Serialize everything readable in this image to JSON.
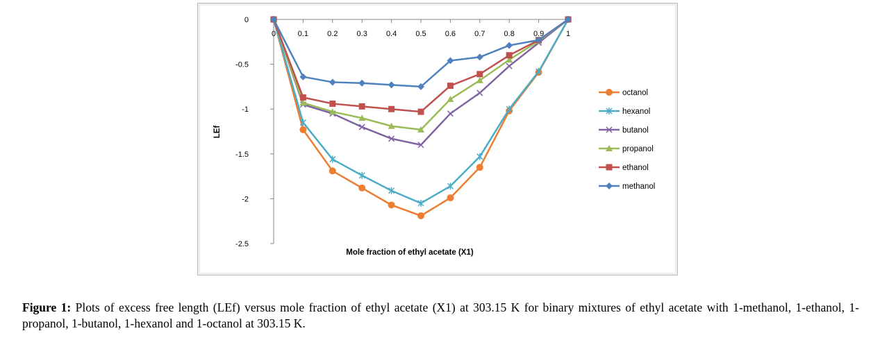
{
  "chart_data": {
    "type": "line",
    "title": "",
    "xlabel": "Mole fraction of ethyl acetate (X1)",
    "ylabel": "LEf",
    "xlim": [
      0,
      1
    ],
    "ylim": [
      -2.5,
      0
    ],
    "x": [
      0,
      0.1,
      0.2,
      0.3,
      0.4,
      0.5,
      0.6,
      0.7,
      0.8,
      0.9,
      1
    ],
    "x_tick_labels": [
      "0",
      "0.1",
      "0.2",
      "0.3",
      "0.4",
      "0.5",
      "0.6",
      "0.7",
      "0.8",
      "0.9",
      "1"
    ],
    "y_ticks": [
      0,
      -0.5,
      -1,
      -1.5,
      -2,
      -2.5
    ],
    "y_tick_labels": [
      "0",
      "-0.5",
      "-1",
      "-1.5",
      "-2",
      "-2.5"
    ],
    "legend_position": "right",
    "series": [
      {
        "name": "octanol",
        "color": "#ED7D31",
        "marker": "circle",
        "values": [
          0,
          -1.23,
          -1.69,
          -1.88,
          -2.07,
          -2.19,
          -1.99,
          -1.65,
          -1.02,
          -0.59,
          0
        ]
      },
      {
        "name": "hexanol",
        "color": "#4BACC6",
        "marker": "star",
        "values": [
          0,
          -1.15,
          -1.56,
          -1.74,
          -1.91,
          -2.05,
          -1.86,
          -1.53,
          -1.0,
          -0.58,
          0
        ]
      },
      {
        "name": "butanol",
        "color": "#8064A2",
        "marker": "x",
        "values": [
          0,
          -0.95,
          -1.05,
          -1.2,
          -1.33,
          -1.4,
          -1.05,
          -0.82,
          -0.52,
          -0.26,
          0
        ]
      },
      {
        "name": "propanol",
        "color": "#9BBB59",
        "marker": "triangle",
        "values": [
          0,
          -0.93,
          -1.03,
          -1.1,
          -1.19,
          -1.23,
          -0.89,
          -0.68,
          -0.45,
          -0.24,
          0
        ]
      },
      {
        "name": "ethanol",
        "color": "#C0504D",
        "marker": "square",
        "values": [
          0,
          -0.87,
          -0.94,
          -0.97,
          -1.0,
          -1.03,
          -0.74,
          -0.61,
          -0.4,
          -0.23,
          0
        ]
      },
      {
        "name": "methanol",
        "color": "#4F81BD",
        "marker": "diamond",
        "values": [
          0,
          -0.64,
          -0.7,
          -0.71,
          -0.73,
          -0.75,
          -0.46,
          -0.42,
          -0.29,
          -0.23,
          0
        ]
      }
    ]
  },
  "caption": {
    "label": "Figure 1:",
    "text": " Plots of excess free length (LEf) versus mole fraction of ethyl acetate (X1) at 303.15 K for binary mixtures of ethyl acetate with 1-methanol, 1-ethanol, 1- propanol, 1-butanol, 1-hexanol and 1-octanol at 303.15 K."
  }
}
